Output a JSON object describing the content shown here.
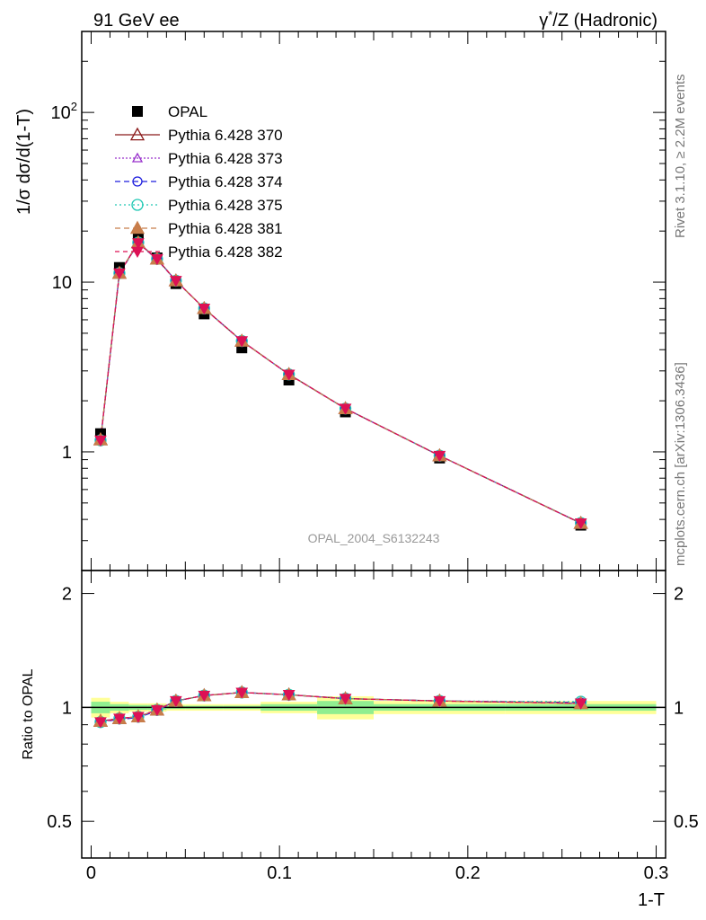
{
  "header": {
    "left_title": "91 GeV ee",
    "right_title_prefix": "γ",
    "right_title_sup": "*",
    "right_title_suffix": "/Z (Hadronic)"
  },
  "side_labels": {
    "rivet": "Rivet 3.1.10, ≥ 2.2M events",
    "mcplots": "mcplots.cern.ch [arXiv:1306.3436]"
  },
  "watermark": "OPAL_2004_S6132243",
  "colors": {
    "data": "#000000",
    "band_inner": "#90ee90",
    "band_outer": "#ffff99",
    "s370": "#8b1a1a",
    "s373": "#9932cc",
    "s374": "#1c1cdd",
    "s375": "#20c8b4",
    "s381": "#c87d4a",
    "s382": "#dd1155"
  },
  "chart_data": [
    {
      "type": "line",
      "panel": "main",
      "xlabel": "1-T",
      "ylabel": "1/σ dσ/d(1-T)",
      "xlim": [
        -0.005,
        0.305
      ],
      "ylim": [
        0.2,
        300
      ],
      "yscale": "log",
      "y_ticks": [
        {
          "value": 1,
          "base": "1",
          "exp": ""
        },
        {
          "value": 10,
          "base": "10",
          "exp": ""
        },
        {
          "value": 100,
          "base": "10",
          "exp": "2"
        }
      ],
      "legend_position": "top-left",
      "x": [
        0.005,
        0.015,
        0.025,
        0.035,
        0.045,
        0.06,
        0.08,
        0.105,
        0.135,
        0.185,
        0.26
      ],
      "x_bins": [
        [
          0.0,
          0.01
        ],
        [
          0.01,
          0.02
        ],
        [
          0.02,
          0.03
        ],
        [
          0.03,
          0.04
        ],
        [
          0.04,
          0.05
        ],
        [
          0.05,
          0.07
        ],
        [
          0.07,
          0.09
        ],
        [
          0.09,
          0.12
        ],
        [
          0.12,
          0.15
        ],
        [
          0.15,
          0.22
        ],
        [
          0.22,
          0.3
        ]
      ],
      "series": [
        {
          "name": "OPAL",
          "values": [
            1.28,
            12.2,
            18.3,
            13.9,
            9.8,
            6.5,
            4.1,
            2.65,
            1.72,
            0.92,
            0.37
          ]
        },
        {
          "name": "Pythia 6.428 370",
          "values": [
            1.18,
            11.3,
            17.1,
            13.7,
            10.2,
            7.0,
            4.5,
            2.86,
            1.8,
            0.95,
            0.38
          ]
        },
        {
          "name": "Pythia 6.428 373",
          "values": [
            1.17,
            11.3,
            17.0,
            13.7,
            10.2,
            7.0,
            4.5,
            2.86,
            1.8,
            0.95,
            0.38
          ]
        },
        {
          "name": "Pythia 6.428 374",
          "values": [
            1.17,
            11.2,
            17.0,
            13.6,
            10.2,
            7.0,
            4.5,
            2.86,
            1.8,
            0.95,
            0.38
          ]
        },
        {
          "name": "Pythia 6.428 375",
          "values": [
            1.17,
            11.3,
            17.1,
            13.7,
            10.2,
            7.0,
            4.5,
            2.86,
            1.8,
            0.95,
            0.381
          ]
        },
        {
          "name": "Pythia 6.428 381",
          "values": [
            1.18,
            11.3,
            17.1,
            13.7,
            10.2,
            7.0,
            4.5,
            2.86,
            1.8,
            0.95,
            0.38
          ]
        },
        {
          "name": "Pythia 6.428 382",
          "values": [
            1.17,
            11.3,
            17.0,
            13.7,
            10.2,
            7.0,
            4.5,
            2.86,
            1.8,
            0.95,
            0.38
          ]
        }
      ]
    },
    {
      "type": "line",
      "panel": "ratio",
      "xlabel": "1-T",
      "ylabel": "Ratio to OPAL",
      "xlim": [
        -0.005,
        0.305
      ],
      "ylim": [
        0.4,
        2.3
      ],
      "yscale": "log",
      "y_ticks": [
        {
          "value": 0.5,
          "label": "0.5"
        },
        {
          "value": 1,
          "label": "1"
        },
        {
          "value": 2,
          "label": "2"
        }
      ],
      "x_ticks": [
        {
          "value": 0,
          "label": "0"
        },
        {
          "value": 0.1,
          "label": "0.1"
        },
        {
          "value": 0.2,
          "label": "0.2"
        },
        {
          "value": 0.3,
          "label": "0.3"
        }
      ],
      "reference_line": 1,
      "band_inner": [
        0.035,
        0.02,
        0.015,
        0.015,
        0.01,
        0.01,
        0.01,
        0.02,
        0.04,
        0.02,
        0.02
      ],
      "band_outer": [
        0.06,
        0.035,
        0.025,
        0.025,
        0.02,
        0.02,
        0.02,
        0.035,
        0.07,
        0.04,
        0.04
      ],
      "x": [
        0.005,
        0.015,
        0.025,
        0.035,
        0.045,
        0.06,
        0.08,
        0.105,
        0.135,
        0.185,
        0.26
      ],
      "series": [
        {
          "name": "Pythia 6.428 370",
          "values": [
            0.92,
            0.935,
            0.945,
            0.985,
            1.04,
            1.075,
            1.095,
            1.08,
            1.055,
            1.04,
            1.025
          ]
        },
        {
          "name": "Pythia 6.428 373",
          "values": [
            0.915,
            0.935,
            0.945,
            0.985,
            1.04,
            1.075,
            1.095,
            1.08,
            1.055,
            1.04,
            1.025
          ]
        },
        {
          "name": "Pythia 6.428 374",
          "values": [
            0.915,
            0.93,
            0.94,
            0.98,
            1.04,
            1.075,
            1.095,
            1.08,
            1.055,
            1.04,
            1.03
          ]
        },
        {
          "name": "Pythia 6.428 375",
          "values": [
            0.915,
            0.935,
            0.945,
            0.985,
            1.04,
            1.075,
            1.095,
            1.08,
            1.055,
            1.04,
            1.035
          ]
        },
        {
          "name": "Pythia 6.428 381",
          "values": [
            0.92,
            0.935,
            0.945,
            0.985,
            1.04,
            1.075,
            1.095,
            1.08,
            1.055,
            1.04,
            1.025
          ]
        },
        {
          "name": "Pythia 6.428 382",
          "values": [
            0.915,
            0.935,
            0.945,
            0.985,
            1.04,
            1.075,
            1.095,
            1.08,
            1.055,
            1.04,
            1.025
          ]
        }
      ]
    }
  ]
}
